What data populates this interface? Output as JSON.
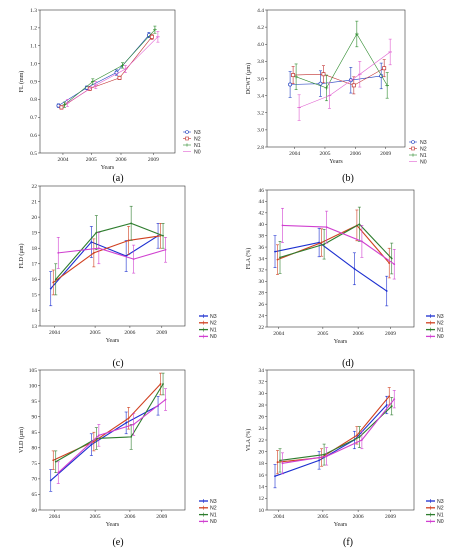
{
  "figure": {
    "panel_labels": [
      "(a)",
      "(b)",
      "(c)",
      "(d)",
      "(e)",
      "(f)"
    ]
  },
  "chart_data": [
    {
      "panel": "(a)",
      "type": "line",
      "style": "scatter-trend",
      "xlabel": "Years",
      "ylabel": "FL (mm)",
      "categories": [
        "2004",
        "2005",
        "2006",
        "2009"
      ],
      "ylim": [
        0.5,
        1.3
      ],
      "yticks": [
        0.5,
        0.6,
        0.7,
        0.8,
        0.9,
        1.0,
        1.1,
        1.2,
        1.3
      ],
      "ytick_labels": [
        "0.5",
        "0.6",
        "0.7",
        "0.8",
        "0.9",
        "1.0",
        "1.1",
        "1.2",
        "1.3"
      ],
      "legend_position": "right",
      "grid": false,
      "series": [
        {
          "name": "N3",
          "color": "#1f3fbf",
          "marker": "circle",
          "values": [
            0.765,
            0.865,
            0.95,
            1.16
          ],
          "err": [
            0.01,
            0.01,
            0.015,
            0.015
          ]
        },
        {
          "name": "N2",
          "color": "#c03030",
          "marker": "square",
          "values": [
            0.755,
            0.86,
            0.92,
            1.15
          ],
          "err": [
            0.01,
            0.01,
            0.01,
            0.015
          ]
        },
        {
          "name": "N1",
          "color": "#2e8b2e",
          "marker": "plus",
          "values": [
            0.77,
            0.9,
            0.99,
            1.19
          ],
          "err": [
            0.015,
            0.015,
            0.015,
            0.02
          ]
        },
        {
          "name": "N0",
          "color": "#e060d0",
          "marker": "dash",
          "values": [
            0.78,
            0.88,
            0.97,
            1.15
          ],
          "err": [
            0.02,
            0.02,
            0.02,
            0.03
          ]
        }
      ]
    },
    {
      "panel": "(b)",
      "type": "line",
      "style": "scatter-trend",
      "xlabel": "Years",
      "ylabel": "DCWT (µm)",
      "categories": [
        "2004",
        "2005",
        "2006",
        "2009"
      ],
      "ylim": [
        2.8,
        4.4
      ],
      "yticks": [
        2.8,
        3.0,
        3.2,
        3.4,
        3.6,
        3.8,
        4.0,
        4.2,
        4.4
      ],
      "ytick_labels": [
        "2.8",
        "3.0",
        "3.2",
        "3.4",
        "3.6",
        "3.8",
        "4.0",
        "4.2",
        "4.4"
      ],
      "legend_position": "right",
      "grid": false,
      "series": [
        {
          "name": "N3",
          "color": "#1f3fbf",
          "marker": "circle",
          "values": [
            3.53,
            3.54,
            3.58,
            3.63
          ],
          "err": [
            0.15,
            0.15,
            0.15,
            0.15
          ]
        },
        {
          "name": "N2",
          "color": "#c03030",
          "marker": "square",
          "values": [
            3.64,
            3.65,
            3.52,
            3.72
          ],
          "err": [
            0.1,
            0.1,
            0.1,
            0.1
          ]
        },
        {
          "name": "N1",
          "color": "#2e8b2e",
          "marker": "plus",
          "values": [
            3.62,
            3.49,
            4.12,
            3.52
          ],
          "err": [
            0.15,
            0.15,
            0.15,
            0.15
          ]
        },
        {
          "name": "N0",
          "color": "#e060d0",
          "marker": "dash",
          "values": [
            3.26,
            3.4,
            3.65,
            3.91
          ],
          "err": [
            0.15,
            0.15,
            0.15,
            0.15
          ]
        }
      ]
    },
    {
      "panel": "(c)",
      "type": "line",
      "style": "jittered-errorbars",
      "xlabel": "Years",
      "ylabel": "FLD (µm)",
      "categories": [
        "2004",
        "2005",
        "2006",
        "2009"
      ],
      "ylim": [
        13,
        22
      ],
      "yticks": [
        13,
        14,
        15,
        16,
        17,
        18,
        19,
        20,
        21,
        22
      ],
      "ytick_labels": [
        "13",
        "14",
        "15",
        "16",
        "17",
        "18",
        "19",
        "20",
        "21",
        "22"
      ],
      "legend_position": "bottom-right",
      "grid": false,
      "series": [
        {
          "name": "N3",
          "color": "#1c2fd0",
          "values": [
            15.4,
            18.4,
            17.5,
            18.8
          ],
          "err": [
            1.1,
            1.0,
            1.0,
            0.8
          ]
        },
        {
          "name": "N2",
          "color": "#d04020",
          "values": [
            15.8,
            17.7,
            18.5,
            18.8
          ],
          "err": [
            0.8,
            0.9,
            0.9,
            0.8
          ]
        },
        {
          "name": "N1",
          "color": "#2e7d2e",
          "values": [
            16.0,
            19.0,
            19.6,
            18.8
          ],
          "err": [
            1.0,
            1.1,
            1.1,
            0.8
          ]
        },
        {
          "name": "N0",
          "color": "#d040d0",
          "values": [
            17.7,
            18.0,
            17.3,
            17.9
          ],
          "err": [
            1.0,
            1.0,
            0.9,
            0.8
          ]
        }
      ]
    },
    {
      "panel": "(d)",
      "type": "line",
      "style": "jittered-errorbars",
      "xlabel": "Years",
      "ylabel": "FLA (%)",
      "categories": [
        "2004",
        "2005",
        "2006",
        "2009"
      ],
      "ylim": [
        22,
        46
      ],
      "yticks": [
        22,
        24,
        26,
        28,
        30,
        32,
        34,
        36,
        38,
        40,
        42,
        44,
        46
      ],
      "ytick_labels": [
        "22",
        "24",
        "26",
        "28",
        "30",
        "32",
        "34",
        "36",
        "38",
        "40",
        "42",
        "44",
        "46"
      ],
      "legend_position": "bottom-right",
      "grid": false,
      "series": [
        {
          "name": "N3",
          "color": "#1c2fd0",
          "values": [
            35.2,
            36.8,
            32.2,
            28.3
          ],
          "err": [
            2.8,
            2.5,
            2.8,
            2.6
          ]
        },
        {
          "name": "N2",
          "color": "#d04020",
          "values": [
            33.8,
            36.8,
            39.8,
            33.2
          ],
          "err": [
            2.6,
            2.4,
            2.7,
            2.6
          ]
        },
        {
          "name": "N1",
          "color": "#2e7d2e",
          "values": [
            34.2,
            36.5,
            40.0,
            34.0
          ],
          "err": [
            2.8,
            2.6,
            3.0,
            2.7
          ]
        },
        {
          "name": "N0",
          "color": "#d040d0",
          "values": [
            39.8,
            39.5,
            37.0,
            33.0
          ],
          "err": [
            3.0,
            2.8,
            2.8,
            2.6
          ]
        }
      ]
    },
    {
      "panel": "(e)",
      "type": "line",
      "style": "jittered-errorbars",
      "xlabel": "Years",
      "ylabel": "VLD (µm)",
      "categories": [
        "2004",
        "2005",
        "2006",
        "2009"
      ],
      "ylim": [
        60,
        105
      ],
      "yticks": [
        60,
        65,
        70,
        75,
        80,
        85,
        90,
        95,
        100,
        105
      ],
      "ytick_labels": [
        "60",
        "65",
        "70",
        "75",
        "80",
        "85",
        "90",
        "95",
        "100",
        "105"
      ],
      "legend_position": "bottom-right",
      "grid": false,
      "series": [
        {
          "name": "N3",
          "color": "#1c2fd0",
          "values": [
            69.5,
            81.0,
            88.0,
            93.5
          ],
          "err": [
            3.5,
            3.5,
            3.5,
            3.0
          ]
        },
        {
          "name": "N2",
          "color": "#d04020",
          "values": [
            76.0,
            82.0,
            89.5,
            100.5
          ],
          "err": [
            3.0,
            3.0,
            3.5,
            3.5
          ]
        },
        {
          "name": "N1",
          "color": "#2e7d2e",
          "values": [
            75.5,
            83.0,
            83.5,
            100.5
          ],
          "err": [
            3.5,
            3.5,
            4.0,
            3.5
          ]
        },
        {
          "name": "N0",
          "color": "#d040d0",
          "values": [
            72.0,
            84.0,
            87.5,
            95.5
          ],
          "err": [
            3.5,
            3.5,
            3.5,
            3.5
          ]
        }
      ]
    },
    {
      "panel": "(f)",
      "type": "line",
      "style": "jittered-errorbars",
      "xlabel": "Years",
      "ylabel": "VLA (%)",
      "categories": [
        "2004",
        "2005",
        "2006",
        "2009"
      ],
      "ylim": [
        10,
        34
      ],
      "yticks": [
        10,
        12,
        14,
        16,
        18,
        20,
        22,
        24,
        26,
        28,
        30,
        32,
        34
      ],
      "ytick_labels": [
        "10",
        "12",
        "14",
        "16",
        "18",
        "20",
        "22",
        "24",
        "26",
        "28",
        "30",
        "32",
        "34"
      ],
      "legend_position": "bottom-right",
      "grid": false,
      "series": [
        {
          "name": "N3",
          "color": "#1c2fd0",
          "values": [
            15.8,
            18.5,
            22.0,
            28.0
          ],
          "err": [
            2.0,
            1.5,
            1.5,
            1.5
          ]
        },
        {
          "name": "N2",
          "color": "#d04020",
          "values": [
            18.2,
            19.0,
            22.8,
            29.5
          ],
          "err": [
            2.0,
            1.5,
            1.5,
            1.5
          ]
        },
        {
          "name": "N1",
          "color": "#2e7d2e",
          "values": [
            18.5,
            19.5,
            22.5,
            27.8
          ],
          "err": [
            2.0,
            1.8,
            1.8,
            1.5
          ]
        },
        {
          "name": "N0",
          "color": "#d040d0",
          "values": [
            18.0,
            19.2,
            22.0,
            29.0
          ],
          "err": [
            1.8,
            1.5,
            1.5,
            1.5
          ]
        }
      ]
    }
  ]
}
